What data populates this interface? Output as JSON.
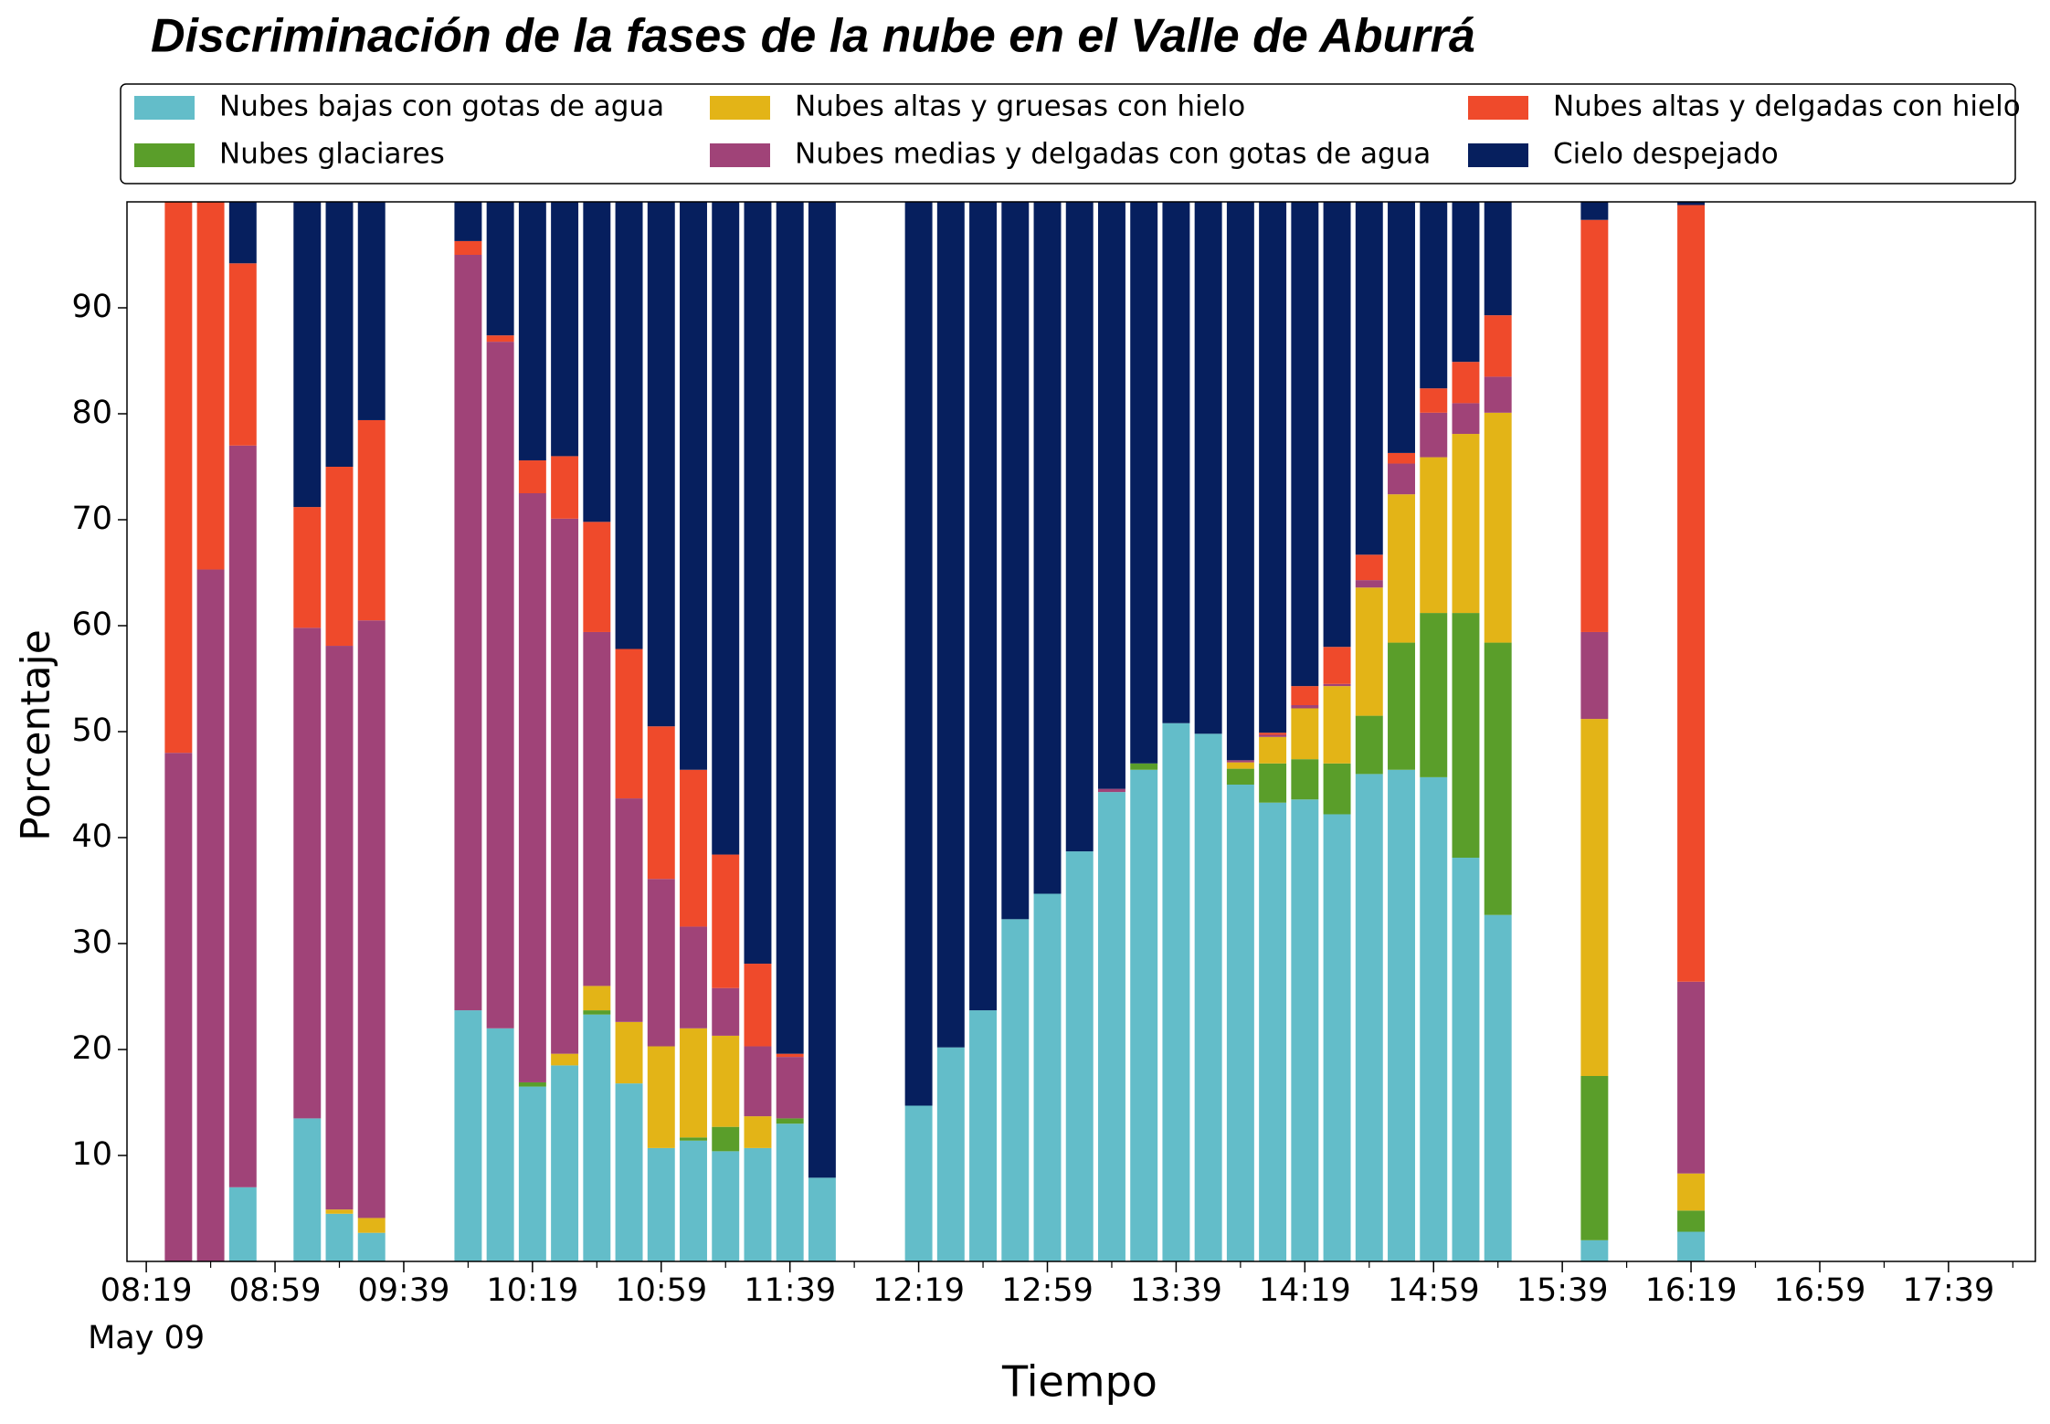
{
  "chart_data": {
    "type": "stacked_bar",
    "title": "Discriminación de la fases de la nube en el Valle de Aburrá",
    "xlabel": "Tiempo",
    "ylabel": "Porcentaje",
    "x_date_label": "May 09",
    "x": [
      "08:29",
      "08:39",
      "08:49",
      "09:09",
      "09:19",
      "09:29",
      "09:59",
      "10:09",
      "10:19",
      "10:29",
      "10:39",
      "10:49",
      "10:59",
      "11:09",
      "11:19",
      "11:29",
      "11:39",
      "11:49",
      "12:19",
      "12:29",
      "12:39",
      "12:49",
      "12:59",
      "13:09",
      "13:19",
      "13:29",
      "13:39",
      "13:49",
      "13:59",
      "14:09",
      "14:19",
      "14:29",
      "14:39",
      "14:49",
      "14:59",
      "15:09",
      "15:19",
      "15:49",
      "16:19"
    ],
    "series": [
      {
        "name": "Nubes bajas con gotas de agua",
        "color": "#63bdc9",
        "values": [
          0,
          0,
          7,
          13.5,
          4.5,
          2.7,
          23.7,
          22,
          16.5,
          18.5,
          23.3,
          16.8,
          10.7,
          11.4,
          10.4,
          10.7,
          13,
          7.9,
          14.7,
          20.2,
          23.7,
          32.3,
          34.7,
          38.7,
          44.3,
          46.4,
          50.8,
          49.8,
          45,
          43.3,
          43.6,
          42.2,
          46,
          46.4,
          45.7,
          38.1,
          32.7,
          2,
          2.8
        ]
      },
      {
        "name": "Nubes glaciares",
        "color": "#5a9e2a",
        "values": [
          0,
          0,
          0,
          0,
          0,
          0,
          0,
          0,
          0.4,
          0,
          0.4,
          0,
          0,
          0.3,
          2.3,
          0,
          0.5,
          0,
          0,
          0,
          0,
          0,
          0,
          0,
          0,
          0.6,
          0,
          0,
          1.5,
          3.7,
          3.8,
          4.8,
          5.5,
          12,
          15.5,
          23.1,
          25.7,
          15.5,
          2
        ]
      },
      {
        "name": "Nubes altas y gruesas con hielo",
        "color": "#e3b417",
        "values": [
          0,
          0,
          0,
          0,
          0.4,
          1.4,
          0,
          0,
          0,
          1.1,
          2.3,
          5.8,
          9.6,
          10.3,
          8.6,
          3,
          0,
          0,
          0,
          0,
          0,
          0,
          0,
          0,
          0,
          0,
          0,
          0,
          0.6,
          2.5,
          4.8,
          7.3,
          12.1,
          14,
          14.7,
          16.9,
          21.7,
          33.7,
          3.5
        ]
      },
      {
        "name": "Nubes medias y delgadas con gotas de agua",
        "color": "#a04378",
        "values": [
          48,
          65.3,
          70,
          46.3,
          53.2,
          56.4,
          71.3,
          64.8,
          55.6,
          50.5,
          33.4,
          21.1,
          15.8,
          9.6,
          4.5,
          6.6,
          5.8,
          0,
          0,
          0,
          0,
          0,
          0,
          0,
          0.3,
          0,
          0,
          0,
          0.2,
          0.2,
          0.3,
          0.2,
          0.7,
          2.9,
          4.2,
          2.9,
          3.4,
          8.2,
          18.1
        ]
      },
      {
        "name": "Nubes altas y delgadas con hielo",
        "color": "#ef4a2b",
        "values": [
          52,
          34.7,
          17.2,
          11.4,
          16.9,
          18.9,
          1.3,
          0.6,
          3.1,
          5.9,
          10.4,
          14.1,
          14.4,
          14.8,
          12.6,
          7.8,
          0.3,
          0,
          0,
          0,
          0,
          0,
          0,
          0,
          0,
          0,
          0,
          0,
          0,
          0.2,
          1.8,
          3.5,
          2.4,
          1,
          2.3,
          3.9,
          5.8,
          38.9,
          73.3
        ]
      },
      {
        "name": "Cielo despejado",
        "color": "#061f5e",
        "values": [
          0,
          0,
          5.8,
          28.8,
          25,
          20.6,
          3.7,
          12.6,
          24.4,
          24,
          30.2,
          42.2,
          49.5,
          53.6,
          61.6,
          71.9,
          80.4,
          92.1,
          85.3,
          79.8,
          76.3,
          67.7,
          65.3,
          61.3,
          55.4,
          53,
          49.2,
          50.2,
          52.7,
          50.1,
          45.7,
          42,
          33.3,
          23.7,
          17.6,
          15.1,
          10.7,
          1.7,
          0.3
        ]
      }
    ],
    "bar_width_minutes": 8.5,
    "xlim": [
      "08:13",
      "18:06"
    ],
    "xticks": [
      "08:19",
      "08:59",
      "09:39",
      "10:19",
      "10:59",
      "11:39",
      "12:19",
      "12:59",
      "13:39",
      "14:19",
      "14:59",
      "15:39",
      "16:19",
      "16:59",
      "17:39"
    ],
    "xminorticks": [
      "08:39",
      "09:19",
      "09:59",
      "10:39",
      "11:19",
      "11:59",
      "12:39",
      "13:19",
      "13:59",
      "14:39",
      "15:19",
      "15:59",
      "16:39",
      "17:19",
      "17:59"
    ],
    "ylim": [
      0,
      100
    ],
    "yticks": [
      10,
      20,
      30,
      40,
      50,
      60,
      70,
      80,
      90
    ],
    "legend": "top"
  }
}
